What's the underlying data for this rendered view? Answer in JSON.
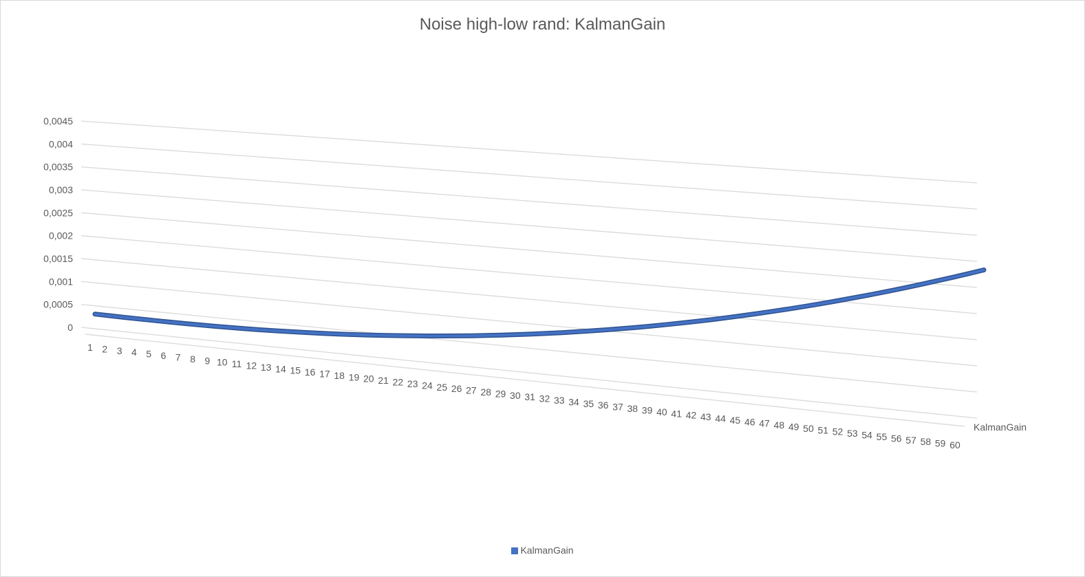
{
  "chart_data": {
    "type": "line",
    "title": "Noise high-low rand: KalmanGain",
    "x": [
      1,
      2,
      3,
      4,
      5,
      6,
      7,
      8,
      9,
      10,
      11,
      12,
      13,
      14,
      15,
      16,
      17,
      18,
      19,
      20,
      21,
      22,
      23,
      24,
      25,
      26,
      27,
      28,
      29,
      30,
      31,
      32,
      33,
      34,
      35,
      36,
      37,
      38,
      39,
      40,
      41,
      42,
      43,
      44,
      45,
      46,
      47,
      48,
      49,
      50,
      51,
      52,
      53,
      54,
      55,
      56,
      57,
      58,
      59,
      60
    ],
    "series": [
      {
        "name": "KalmanGain",
        "color": "#4472c4",
        "values": [
          0.00014,
          0.000135,
          0.00013,
          0.000127,
          0.000125,
          0.000124,
          0.000124,
          0.000126,
          0.000129,
          0.000134,
          0.00014,
          0.000148,
          0.000158,
          0.00017,
          0.000183,
          0.000198,
          0.000215,
          0.000234,
          0.000254,
          0.000277,
          0.000301,
          0.000327,
          0.000355,
          0.000384,
          0.000415,
          0.000448,
          0.000483,
          0.00052,
          0.000559,
          0.000599,
          0.000641,
          0.000685,
          0.000731,
          0.000779,
          0.000828,
          0.00088,
          0.000933,
          0.000988,
          0.001045,
          0.001104,
          0.001164,
          0.001226,
          0.00129,
          0.001356,
          0.001424,
          0.001493,
          0.001564,
          0.001637,
          0.001711,
          0.001787,
          0.001865,
          0.001944,
          0.002025,
          0.002108,
          0.002192,
          0.002278,
          0.002366,
          0.002455,
          0.002546,
          0.002638
        ]
      }
    ],
    "y_ticks": [
      "0",
      "0,0005",
      "0,001",
      "0,0015",
      "0,002",
      "0,0025",
      "0,003",
      "0,0035",
      "0,004",
      "0,0045"
    ],
    "ylim": [
      0,
      0.0045
    ],
    "depth_axis_label": "KalmanGain",
    "legend_position": "bottom",
    "grid": true
  }
}
